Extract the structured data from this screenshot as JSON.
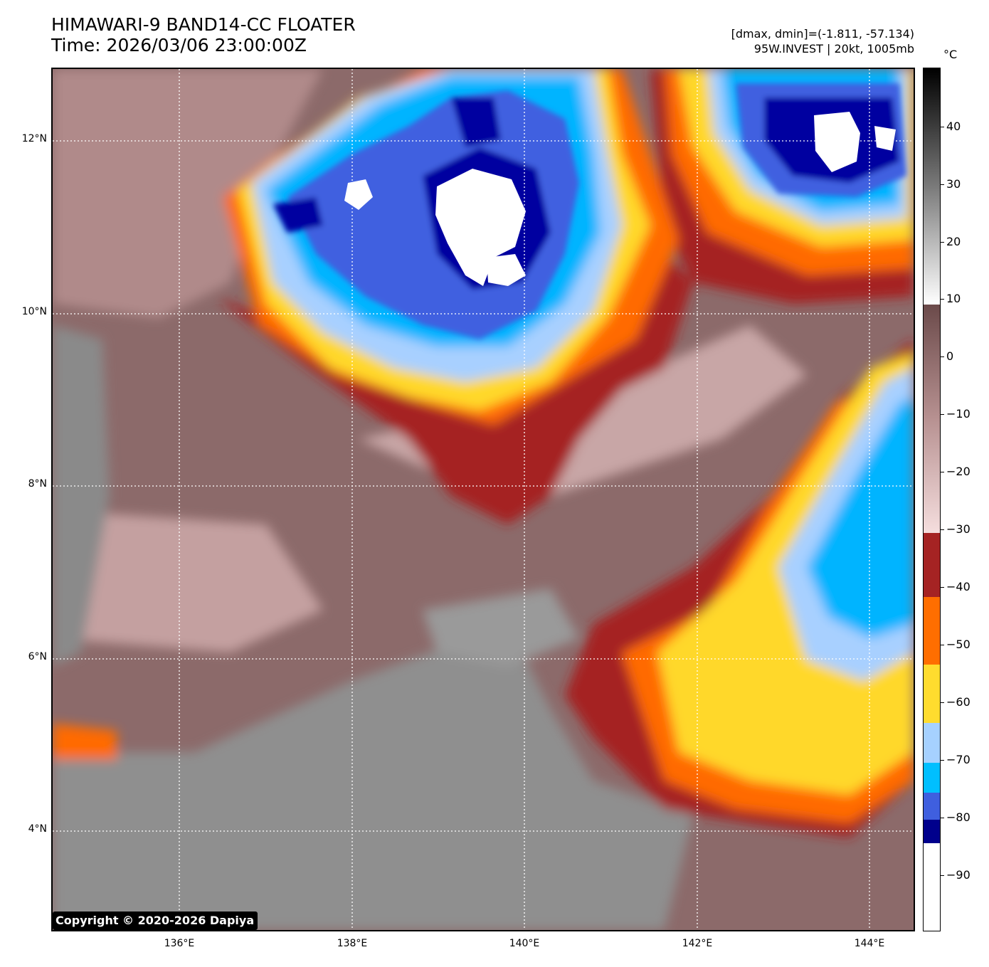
{
  "header": {
    "title_line1": "HIMAWARI-9 BAND14-CC FLOATER",
    "title_line2": "Time: 2026/03/06 23:00:00Z",
    "stats_line": "[dmax, dmin]=(-1.811, -57.134)",
    "storm_line": "95W.INVEST | 20kt, 1005mb"
  },
  "map": {
    "lat_labels": [
      "12°N",
      "10°N",
      "8°N",
      "6°N",
      "4°N"
    ],
    "lon_labels": [
      "136°E",
      "138°E",
      "140°E",
      "142°E",
      "144°E"
    ],
    "gridline_color": "#ffffff",
    "gridline_style": "dotted",
    "cloud_colors": {
      "warm_dark": "#7a5555",
      "warm_mid": "#a88080",
      "warm_light": "#e8cccc",
      "clear_gray": "#8a8a8a",
      "band_-40": "#a52020",
      "band_-50": "#ff6a00",
      "band_-60": "#ffd82a",
      "band_-70_light": "#a8d0ff",
      "band_-70": "#00b4ff",
      "band_-80": "#4060e0",
      "band_-85": "#0000a0",
      "band_-90": "#ffffff"
    }
  },
  "copyright": "Copyright © 2020-2026 Dapiya",
  "colorbar": {
    "unit": "°C",
    "labels": [
      "40",
      "30",
      "20",
      "10",
      "0",
      "−10",
      "−20",
      "−30",
      "−40",
      "−50",
      "−60",
      "−70",
      "−80",
      "−90"
    ],
    "segments": [
      {
        "color": "#ffffff"
      },
      {
        "color": "#00008c"
      },
      {
        "color": "#3f5fdf"
      },
      {
        "color": "#00bfff"
      },
      {
        "color": "#a6d1ff"
      },
      {
        "color": "#ffdc2e"
      },
      {
        "color": "#ff6e00"
      },
      {
        "color": "#a52323"
      }
    ]
  }
}
